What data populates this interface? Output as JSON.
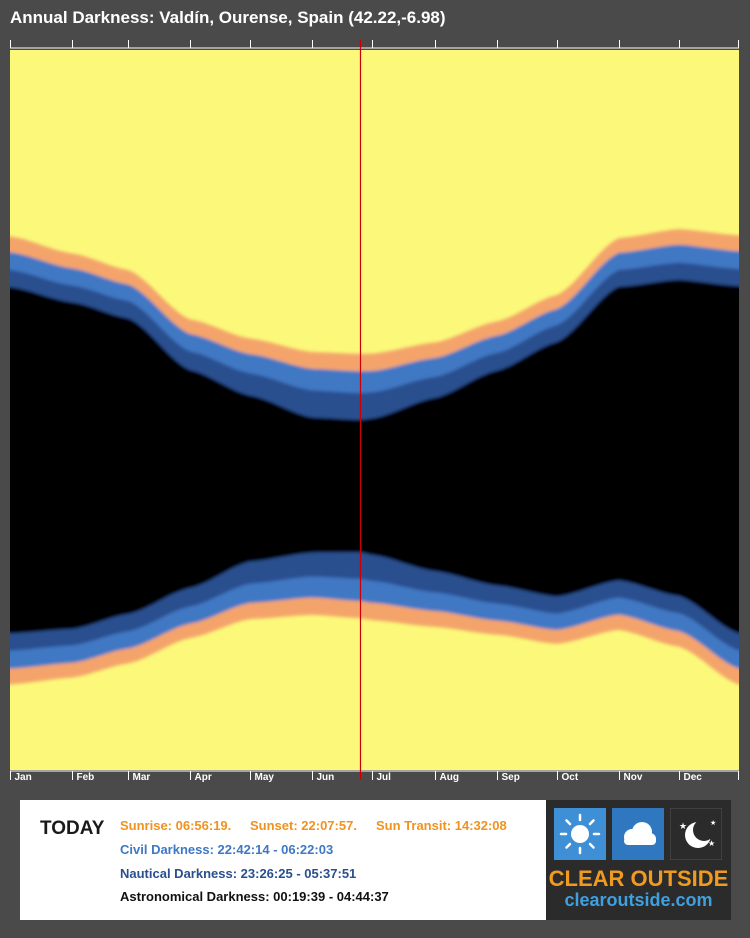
{
  "title": "Annual Darkness: Valdín, Ourense, Spain (42.22,-6.98)",
  "chart_data": {
    "type": "heatmap",
    "title": "Annual Darkness: Valdín, Ourense, Spain (42.22,-6.98)",
    "months": [
      "Jan",
      "Feb",
      "Mar",
      "Apr",
      "May",
      "Jun",
      "Jul",
      "Aug",
      "Sep",
      "Oct",
      "Nov",
      "Dec"
    ],
    "today_marker_day": 176,
    "band_colors": {
      "day": "#fbf87a",
      "civil": "#f4a46a",
      "nautical": "#3f78c4",
      "astronomical": "#2a4f8f",
      "night": "#000000",
      "today_line": "#cc0000"
    },
    "series": [
      {
        "name": "Sunset",
        "days": [
          1,
          32,
          60,
          91,
          121,
          152,
          176,
          182,
          213,
          244,
          274,
          305,
          335,
          365
        ],
        "hours": [
          18.21,
          18.78,
          19.33,
          20.98,
          21.62,
          22.07,
          22.13,
          22.12,
          21.75,
          21.05,
          20.17,
          18.27,
          17.97,
          18.18
        ]
      },
      {
        "name": "Civil Darkness start",
        "days": [
          1,
          32,
          60,
          91,
          121,
          152,
          176,
          182,
          213,
          244,
          274,
          305,
          335,
          365
        ],
        "hours": [
          18.74,
          19.28,
          19.81,
          21.47,
          22.14,
          22.63,
          22.71,
          22.7,
          22.27,
          21.53,
          20.64,
          18.76,
          18.49,
          18.71
        ]
      },
      {
        "name": "Nautical Darkness start",
        "days": [
          1,
          32,
          60,
          91,
          121,
          152,
          176,
          182,
          213,
          244,
          274,
          305,
          335,
          365
        ],
        "hours": [
          19.33,
          19.85,
          20.36,
          22.05,
          22.78,
          23.35,
          23.44,
          23.41,
          22.9,
          22.1,
          21.18,
          19.33,
          19.09,
          19.3
        ]
      },
      {
        "name": "Astronomical Darkness start",
        "days": [
          1,
          32,
          60,
          91,
          121,
          152,
          176,
          182,
          213,
          244,
          274,
          305,
          335,
          365
        ],
        "hours": [
          19.9,
          20.41,
          20.94,
          22.67,
          23.52,
          24.25,
          24.33,
          24.28,
          23.6,
          22.69,
          21.74,
          19.89,
          19.66,
          19.87
        ]
      },
      {
        "name": "Astronomical Darkness end",
        "days": [
          1,
          32,
          60,
          91,
          121,
          152,
          176,
          182,
          213,
          244,
          274,
          305,
          335,
          365
        ],
        "hours": [
          31.45,
          31.3,
          30.8,
          29.93,
          29.05,
          28.75,
          28.74,
          28.83,
          29.37,
          29.85,
          30.22,
          29.68,
          30.2,
          31.45
        ]
      },
      {
        "name": "Nautical Darkness end",
        "days": [
          1,
          32,
          60,
          91,
          121,
          152,
          176,
          182,
          213,
          244,
          274,
          305,
          335,
          365
        ],
        "hours": [
          32.02,
          31.85,
          31.38,
          30.55,
          29.79,
          29.55,
          29.63,
          29.7,
          30.08,
          30.45,
          30.79,
          30.25,
          30.77,
          32.02
        ]
      },
      {
        "name": "Civil Darkness end",
        "days": [
          1,
          32,
          60,
          91,
          121,
          152,
          176,
          182,
          213,
          244,
          274,
          305,
          335,
          365
        ],
        "hours": [
          32.62,
          32.43,
          31.95,
          31.12,
          30.43,
          30.25,
          30.37,
          30.43,
          30.7,
          31.02,
          31.33,
          30.82,
          31.37,
          32.62
        ]
      },
      {
        "name": "Sunrise",
        "days": [
          1,
          32,
          60,
          91,
          121,
          152,
          176,
          182,
          213,
          244,
          274,
          305,
          335,
          365
        ],
        "hours": [
          33.15,
          32.92,
          32.45,
          31.6,
          30.97,
          30.83,
          30.94,
          31.01,
          31.23,
          31.49,
          31.8,
          31.33,
          31.89,
          33.15
        ]
      }
    ]
  },
  "today": {
    "label": "TODAY",
    "sunrise": "Sunrise: 06:56:19.",
    "sunset": "Sunset: 22:07:57.",
    "transit": "Sun Transit: 14:32:08",
    "civil": "Civil Darkness: 22:42:14 - 06:22:03",
    "nautical": "Nautical Darkness: 23:26:25 - 05:37:51",
    "astronomical": "Astronomical Darkness: 00:19:39 - 04:44:37"
  },
  "logo": {
    "line1": "CLEAR OUTSIDE",
    "line2": "clearoutside.com",
    "icons": [
      "sun-icon",
      "cloud-icon",
      "moon-stars-icon"
    ]
  }
}
